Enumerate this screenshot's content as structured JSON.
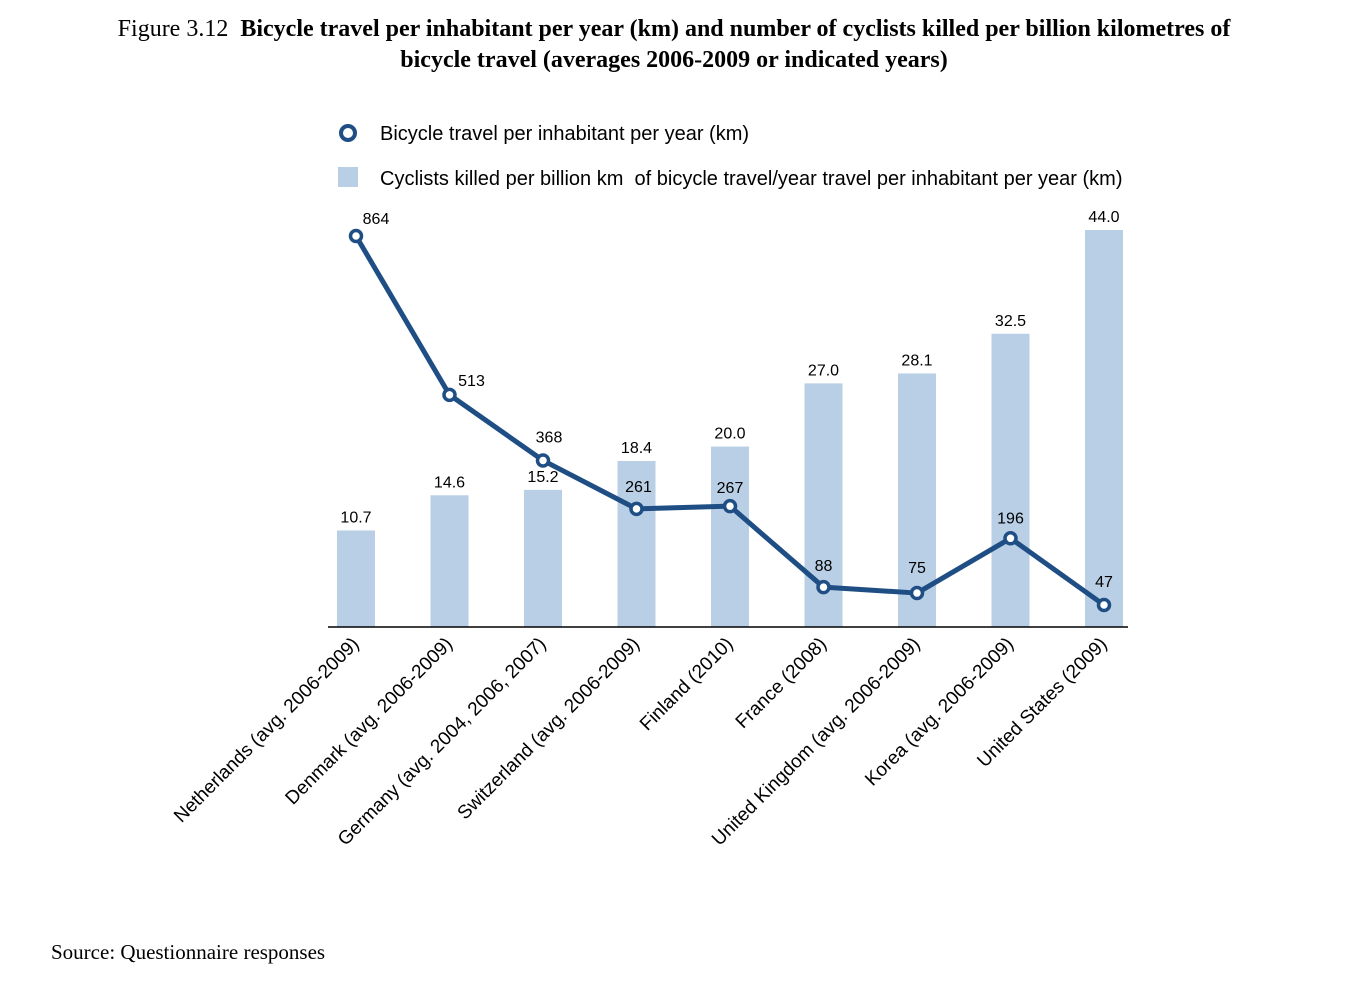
{
  "figure": {
    "number": "Figure 3.12",
    "title_line1": "Bicycle travel per inhabitant per year (km) and number of cyclists killed per billion kilometres of",
    "title_line2": "bicycle travel (averages 2006-2009 or indicated years)",
    "source": "Source: Questionnaire responses"
  },
  "colors": {
    "line": "#1f4e85",
    "bar": "#b9cfe6",
    "axis": "#000000"
  },
  "chart_data": {
    "type": "bar",
    "title": "Bicycle travel per inhabitant per year (km) and number of cyclists killed per billion kilometres of bicycle travel (averages 2006-2009 or indicated years)",
    "categories": [
      "Netherlands (avg. 2006-2009)",
      "Denmark (avg. 2006-2009)",
      "Germany (avg. 2004, 2006, 2007)",
      "Switzerland (avg. 2006-2009)",
      "Finland (2010)",
      "France (2008)",
      "United Kingdom (avg. 2006-2009)",
      "Korea (avg. 2006-2009)",
      "United States (2009)"
    ],
    "series": [
      {
        "name": "Bicycle travel per inhabitant per year (km)",
        "type": "line",
        "values": [
          864,
          513,
          368,
          261,
          267,
          88,
          75,
          196,
          47
        ],
        "labels": [
          "864",
          "513",
          "368",
          "261",
          "267",
          "88",
          "75",
          "196",
          "47"
        ]
      },
      {
        "name": "Cyclists killed per billion km  of bicycle travel/year travel per inhabitant per year (km)",
        "type": "bar",
        "values": [
          10.7,
          14.6,
          15.2,
          18.4,
          20.0,
          27.0,
          28.1,
          32.5,
          44.0
        ],
        "labels": [
          "10.7",
          "14.6",
          "15.2",
          "18.4",
          "20.0",
          "27.0",
          "28.1",
          "32.5",
          "44.0"
        ]
      }
    ],
    "line_axis_range": [
      0,
      900
    ],
    "bar_axis_range": [
      0,
      45
    ],
    "grid": false,
    "legend_position": "top"
  }
}
